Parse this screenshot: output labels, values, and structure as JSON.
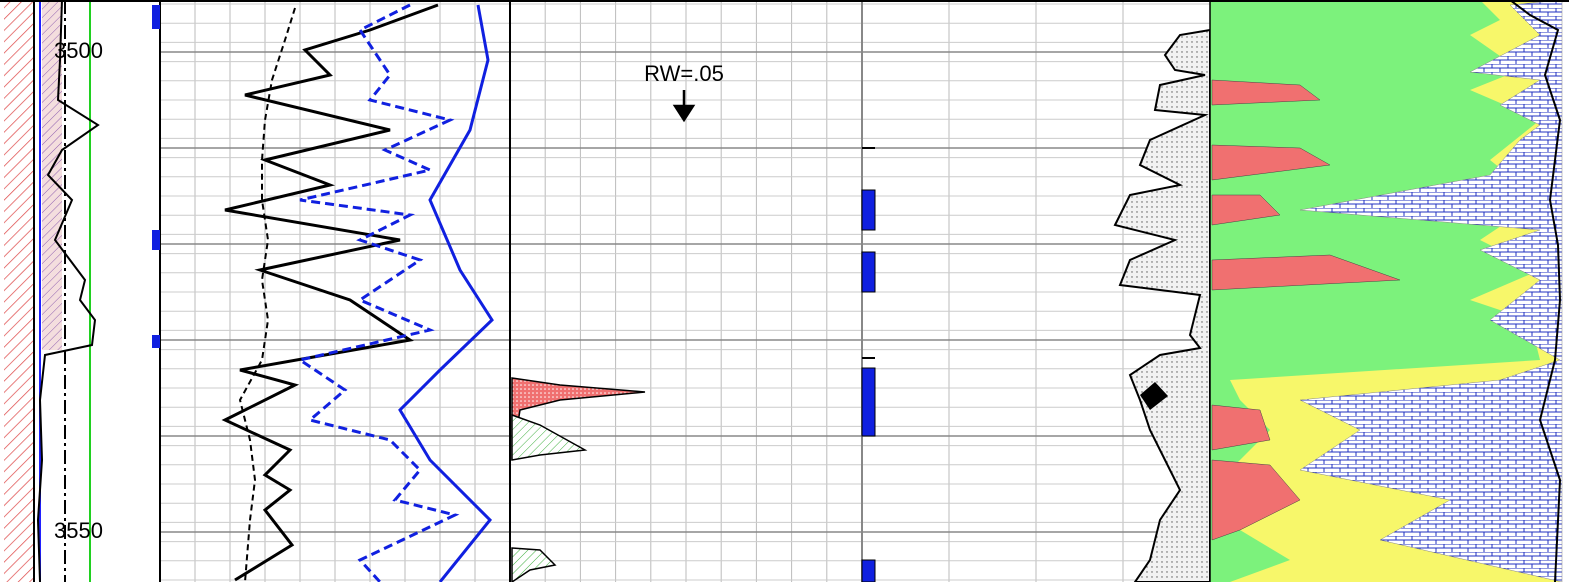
{
  "depth_labels": [
    "3500",
    "3550"
  ],
  "annotation": "RW=.05"
}
